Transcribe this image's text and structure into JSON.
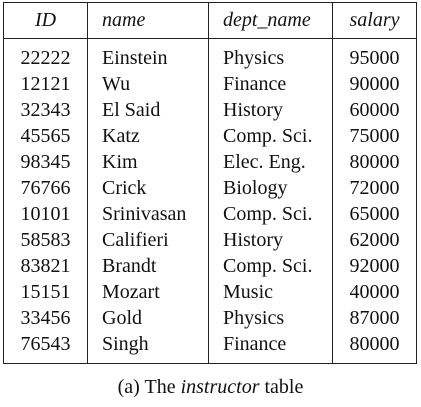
{
  "table": {
    "headers": [
      "ID",
      "name",
      "dept_name",
      "salary"
    ],
    "rows": [
      {
        "id": "22222",
        "name": "Einstein",
        "dept_name": "Physics",
        "salary": "95000"
      },
      {
        "id": "12121",
        "name": "Wu",
        "dept_name": "Finance",
        "salary": "90000"
      },
      {
        "id": "32343",
        "name": "El Said",
        "dept_name": "History",
        "salary": "60000"
      },
      {
        "id": "45565",
        "name": "Katz",
        "dept_name": "Comp. Sci.",
        "salary": "75000"
      },
      {
        "id": "98345",
        "name": "Kim",
        "dept_name": "Elec. Eng.",
        "salary": "80000"
      },
      {
        "id": "76766",
        "name": "Crick",
        "dept_name": "Biology",
        "salary": "72000"
      },
      {
        "id": "10101",
        "name": "Srinivasan",
        "dept_name": "Comp. Sci.",
        "salary": "65000"
      },
      {
        "id": "58583",
        "name": "Califieri",
        "dept_name": "History",
        "salary": "62000"
      },
      {
        "id": "83821",
        "name": "Brandt",
        "dept_name": "Comp. Sci.",
        "salary": "92000"
      },
      {
        "id": "15151",
        "name": "Mozart",
        "dept_name": "Music",
        "salary": "40000"
      },
      {
        "id": "33456",
        "name": "Gold",
        "dept_name": "Physics",
        "salary": "87000"
      },
      {
        "id": "76543",
        "name": "Singh",
        "dept_name": "Finance",
        "salary": "80000"
      }
    ]
  },
  "caption": {
    "prefix": "(a) The ",
    "emphasis": "instructor",
    "suffix": " table"
  }
}
